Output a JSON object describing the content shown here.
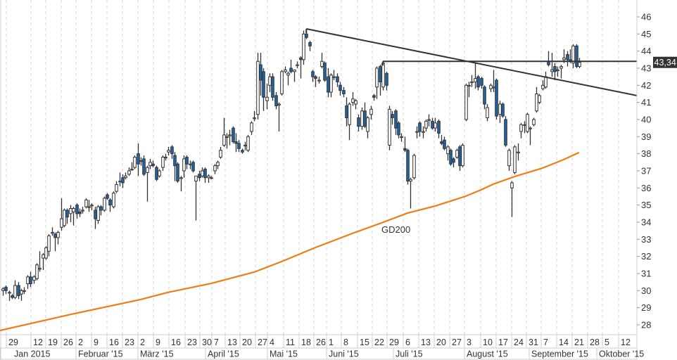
{
  "chart_data": {
    "type": "candlestick",
    "title": "",
    "xlabel": "",
    "ylabel": "",
    "ylim": [
      27.5,
      46.5
    ],
    "y_ticks": [
      28,
      29,
      30,
      31,
      32,
      33,
      34,
      35,
      36,
      37,
      38,
      39,
      40,
      41,
      42,
      43,
      44,
      45,
      46
    ],
    "y_axis_position": "right",
    "grid": "vertical dashed at week ticks",
    "week_ticks": [
      "29",
      "12",
      "19",
      "26",
      "2",
      "9",
      "16",
      "23",
      "2",
      "9",
      "16",
      "23",
      "30",
      "7",
      "13",
      "20",
      "27",
      "4",
      "11",
      "18",
      "26",
      "1",
      "8",
      "15",
      "22",
      "29",
      "6",
      "13",
      "20",
      "27",
      "3",
      "10",
      "17",
      "24",
      "31",
      "7",
      "14",
      "21",
      "28",
      "5",
      "12"
    ],
    "month_labels": [
      "Jan 2015",
      "Februar '15",
      "März '15",
      "April '15",
      "Mai '15",
      "Juni '15",
      "Juli '15",
      "August '15",
      "September '15",
      "Oktober '15"
    ],
    "last_price_label": "43,34",
    "last_price": 43.34,
    "colors": {
      "up_body": "#ffffff",
      "down_body": "#1f64a8",
      "outline": "#333333",
      "gd200": "#f07c12",
      "trendline": "#333333",
      "last_price_bg": "#333333"
    },
    "candles_ohlc": [
      [
        30.0,
        30.2,
        29.7,
        30.1
      ],
      [
        30.2,
        30.3,
        29.8,
        30.0
      ],
      [
        29.9,
        30.0,
        29.4,
        29.9
      ],
      [
        29.7,
        29.8,
        29.5,
        29.6
      ],
      [
        29.6,
        30.6,
        29.5,
        30.3
      ],
      [
        30.3,
        30.5,
        29.5,
        29.7
      ],
      [
        29.8,
        30.1,
        29.4,
        30.0
      ],
      [
        30.0,
        30.2,
        29.8,
        30.0
      ],
      [
        30.4,
        30.9,
        30.1,
        30.8
      ],
      [
        30.8,
        31.1,
        30.2,
        30.4
      ],
      [
        30.6,
        30.9,
        30.4,
        30.8
      ],
      [
        30.7,
        31.6,
        30.6,
        31.5
      ],
      [
        31.3,
        32.3,
        31.1,
        31.3
      ],
      [
        31.9,
        32.2,
        31.2,
        32.1
      ],
      [
        31.9,
        32.6,
        31.8,
        32.5
      ],
      [
        32.3,
        33.3,
        32.0,
        33.2
      ],
      [
        33.4,
        33.7,
        33.2,
        33.4
      ],
      [
        33.3,
        33.4,
        32.3,
        33.1
      ],
      [
        33.1,
        33.5,
        32.7,
        33.4
      ],
      [
        33.7,
        35.4,
        33.5,
        34.2
      ],
      [
        33.8,
        34.8,
        33.7,
        34.7
      ],
      [
        34.7,
        34.8,
        33.9,
        34.3
      ],
      [
        34.5,
        35.0,
        34.0,
        34.8
      ],
      [
        34.6,
        34.9,
        33.8,
        34.8
      ],
      [
        35.0,
        35.1,
        34.2,
        34.5
      ],
      [
        34.6,
        34.8,
        34.3,
        34.5
      ],
      [
        34.7,
        34.9,
        34.5,
        34.7
      ],
      [
        34.9,
        35.4,
        34.8,
        35.3
      ],
      [
        34.9,
        35.3,
        34.6,
        34.9
      ],
      [
        35.0,
        35.1,
        34.7,
        35.0
      ],
      [
        34.7,
        34.9,
        33.6,
        34.2
      ],
      [
        34.1,
        35.0,
        33.9,
        34.9
      ],
      [
        34.9,
        35.0,
        34.4,
        34.7
      ],
      [
        34.7,
        35.5,
        34.6,
        35.4
      ],
      [
        35.6,
        35.7,
        35.3,
        35.4
      ],
      [
        35.3,
        35.4,
        34.6,
        35.0
      ],
      [
        34.9,
        35.8,
        34.8,
        35.7
      ],
      [
        35.8,
        36.4,
        35.7,
        36.2
      ],
      [
        36.4,
        36.9,
        36.1,
        36.4
      ],
      [
        36.6,
        36.8,
        36.0,
        36.3
      ],
      [
        36.6,
        36.9,
        36.5,
        36.7
      ],
      [
        36.8,
        37.2,
        36.7,
        37.0
      ],
      [
        37.1,
        37.5,
        37.0,
        37.1
      ],
      [
        37.2,
        37.9,
        37.1,
        37.8
      ],
      [
        38.0,
        38.6,
        36.7,
        37.4
      ],
      [
        37.6,
        37.8,
        37.3,
        37.6
      ],
      [
        37.7,
        37.9,
        36.7,
        36.8
      ],
      [
        36.9,
        37.3,
        35.2,
        37.2
      ],
      [
        37.3,
        37.7,
        37.1,
        37.5
      ],
      [
        37.4,
        37.6,
        37.2,
        37.3
      ],
      [
        37.2,
        37.3,
        36.4,
        36.5
      ],
      [
        36.7,
        37.1,
        36.6,
        37.0
      ],
      [
        37.2,
        37.9,
        37.0,
        37.8
      ],
      [
        37.8,
        38.0,
        37.6,
        37.8
      ],
      [
        38.1,
        38.4,
        37.9,
        38.2
      ],
      [
        38.4,
        38.5,
        37.7,
        38.0
      ],
      [
        37.9,
        38.1,
        36.4,
        37.3
      ],
      [
        37.4,
        37.5,
        36.3,
        36.4
      ],
      [
        36.6,
        36.7,
        35.8,
        36.6
      ],
      [
        37.0,
        37.9,
        36.6,
        37.7
      ],
      [
        37.8,
        37.9,
        37.1,
        37.4
      ],
      [
        37.4,
        37.6,
        37.1,
        37.4
      ],
      [
        37.5,
        37.6,
        36.9,
        37.0
      ],
      [
        36.4,
        36.7,
        34.1,
        36.7
      ],
      [
        36.8,
        37.0,
        36.4,
        36.6
      ],
      [
        36.7,
        37.2,
        36.6,
        37.0
      ],
      [
        37.1,
        37.2,
        36.3,
        36.6
      ],
      [
        36.6,
        36.8,
        36.3,
        36.7
      ],
      [
        36.6,
        36.7,
        36.5,
        36.6
      ],
      [
        37.0,
        37.4,
        36.8,
        37.3
      ],
      [
        37.3,
        37.6,
        37.1,
        37.5
      ],
      [
        37.8,
        38.4,
        37.7,
        38.2
      ],
      [
        38.5,
        40.1,
        38.4,
        39.1
      ],
      [
        39.0,
        39.2,
        38.3,
        39.0
      ],
      [
        39.1,
        39.4,
        38.5,
        39.1
      ],
      [
        39.5,
        39.6,
        38.6,
        38.7
      ],
      [
        38.7,
        39.2,
        38.1,
        38.6
      ],
      [
        38.6,
        38.8,
        38.1,
        38.3
      ],
      [
        38.2,
        38.3,
        38.0,
        38.1
      ],
      [
        38.5,
        38.7,
        38.2,
        38.5
      ],
      [
        38.2,
        39.1,
        38.1,
        39.0
      ],
      [
        39.3,
        39.9,
        39.1,
        39.8
      ],
      [
        40.1,
        40.5,
        39.9,
        40.1
      ],
      [
        40.3,
        43.9,
        40.0,
        43.4
      ],
      [
        43.2,
        43.9,
        41.4,
        42.3
      ],
      [
        42.8,
        43.0,
        40.5,
        41.3
      ],
      [
        41.1,
        42.1,
        40.6,
        41.3
      ],
      [
        42.0,
        42.7,
        41.6,
        42.5
      ],
      [
        42.5,
        42.7,
        41.1,
        41.3
      ],
      [
        41.4,
        41.6,
        40.6,
        40.8
      ],
      [
        40.9,
        41.0,
        39.3,
        40.9
      ],
      [
        41.5,
        42.9,
        41.4,
        42.8
      ],
      [
        42.8,
        43.1,
        42.7,
        42.9
      ],
      [
        42.6,
        42.8,
        42.0,
        42.7
      ],
      [
        43.0,
        43.5,
        42.7,
        42.8
      ],
      [
        42.8,
        42.9,
        42.2,
        42.9
      ],
      [
        43.2,
        43.4,
        43.0,
        43.2
      ],
      [
        43.6,
        43.7,
        42.4,
        43.5
      ],
      [
        43.5,
        45.2,
        43.2,
        45.0
      ],
      [
        45.0,
        45.2,
        44.7,
        44.8
      ],
      [
        44.5,
        44.6,
        44.0,
        44.3
      ],
      [
        42.8,
        42.9,
        42.2,
        42.5
      ],
      [
        42.5,
        42.6,
        41.9,
        42.4
      ],
      [
        42.3,
        42.5,
        42.1,
        42.3
      ],
      [
        43.1,
        43.9,
        43.0,
        43.4
      ],
      [
        43.3,
        43.4,
        42.2,
        42.3
      ],
      [
        42.5,
        43.0,
        41.3,
        41.6
      ],
      [
        41.6,
        42.7,
        41.3,
        42.6
      ],
      [
        42.5,
        42.9,
        42.3,
        42.5
      ],
      [
        42.5,
        42.7,
        41.9,
        42.2
      ],
      [
        42.0,
        42.2,
        41.4,
        41.7
      ],
      [
        41.7,
        41.9,
        41.3,
        41.5
      ],
      [
        40.8,
        41.3,
        39.6,
        40.1
      ],
      [
        39.7,
        41.0,
        38.8,
        40.9
      ],
      [
        41.0,
        41.6,
        40.8,
        41.2
      ],
      [
        40.9,
        41.2,
        40.6,
        41.1
      ],
      [
        40.1,
        40.3,
        39.3,
        39.6
      ],
      [
        39.6,
        40.7,
        39.4,
        40.5
      ],
      [
        40.5,
        41.0,
        39.5,
        39.6
      ],
      [
        39.3,
        40.2,
        38.9,
        40.1
      ],
      [
        40.3,
        40.8,
        40.0,
        40.6
      ],
      [
        41.4,
        41.5,
        41.1,
        41.3
      ],
      [
        41.9,
        43.1,
        41.2,
        43.0
      ],
      [
        43.1,
        43.2,
        41.4,
        42.2
      ],
      [
        41.9,
        43.4,
        41.7,
        43.3
      ],
      [
        42.7,
        42.8,
        41.7,
        42.0
      ],
      [
        38.5,
        40.8,
        38.2,
        40.6
      ],
      [
        40.3,
        40.5,
        39.7,
        40.1
      ],
      [
        40.5,
        40.6,
        39.1,
        39.5
      ],
      [
        39.8,
        39.9,
        38.9,
        39.1
      ],
      [
        39.0,
        39.2,
        38.7,
        39.0
      ],
      [
        38.3,
        39.0,
        38.1,
        38.2
      ],
      [
        38.2,
        38.3,
        36.2,
        36.4
      ],
      [
        36.4,
        36.6,
        34.8,
        36.5
      ],
      [
        36.6,
        38.0,
        36.5,
        37.9
      ],
      [
        39.3,
        39.6,
        38.9,
        39.3
      ],
      [
        39.8,
        39.9,
        39.0,
        39.3
      ],
      [
        39.3,
        39.6,
        38.9,
        39.3
      ],
      [
        39.5,
        40.0,
        39.3,
        39.9
      ],
      [
        40.0,
        40.3,
        39.6,
        40.0
      ],
      [
        39.9,
        40.1,
        39.4,
        39.5
      ],
      [
        39.5,
        40.1,
        39.3,
        39.8
      ],
      [
        39.9,
        40.0,
        38.9,
        39.2
      ],
      [
        38.7,
        39.1,
        38.5,
        38.6
      ],
      [
        38.8,
        39.0,
        38.2,
        38.3
      ],
      [
        38.0,
        38.5,
        37.6,
        38.4
      ],
      [
        38.2,
        38.3,
        37.3,
        37.4
      ],
      [
        37.7,
        37.8,
        37.2,
        37.5
      ],
      [
        37.8,
        38.3,
        37.7,
        38.2
      ],
      [
        38.4,
        38.5,
        37.0,
        37.3
      ],
      [
        37.3,
        38.6,
        37.2,
        38.5
      ],
      [
        40.0,
        42.1,
        39.9,
        42.0
      ],
      [
        42.0,
        42.2,
        41.3,
        42.0
      ],
      [
        42.2,
        42.6,
        41.9,
        42.2
      ],
      [
        42.2,
        43.3,
        41.8,
        42.4
      ],
      [
        42.5,
        42.6,
        41.7,
        41.9
      ],
      [
        42.4,
        42.5,
        41.8,
        42.0
      ],
      [
        41.9,
        42.0,
        40.6,
        40.9
      ],
      [
        40.1,
        40.9,
        39.9,
        40.7
      ],
      [
        41.8,
        42.1,
        41.6,
        42.0
      ],
      [
        41.9,
        42.9,
        41.6,
        41.9
      ],
      [
        42.3,
        42.4,
        40.0,
        40.2
      ],
      [
        40.3,
        41.1,
        39.8,
        40.9
      ],
      [
        40.9,
        41.0,
        40.1,
        40.2
      ],
      [
        40.0,
        40.2,
        38.4,
        38.5
      ],
      [
        37.3,
        38.3,
        37.0,
        38.2
      ],
      [
        36.0,
        36.4,
        34.3,
        36.3
      ],
      [
        36.9,
        38.5,
        36.8,
        38.4
      ],
      [
        38.1,
        38.6,
        37.6,
        38.1
      ],
      [
        39.3,
        39.8,
        38.9,
        39.7
      ],
      [
        39.7,
        39.9,
        39.2,
        39.7
      ],
      [
        39.3,
        40.4,
        39.2,
        40.3
      ],
      [
        39.5,
        39.6,
        38.5,
        39.5
      ],
      [
        39.7,
        40.1,
        39.6,
        40.0
      ],
      [
        40.5,
        41.9,
        40.4,
        41.5
      ],
      [
        41.0,
        41.5,
        40.9,
        41.4
      ],
      [
        41.8,
        42.3,
        41.7,
        42.0
      ],
      [
        41.9,
        42.8,
        41.8,
        42.5
      ],
      [
        43.4,
        44.0,
        43.1,
        43.2
      ],
      [
        42.8,
        43.9,
        42.5,
        42.9
      ],
      [
        43.1,
        43.3,
        42.3,
        42.8
      ],
      [
        42.9,
        43.1,
        42.5,
        42.9
      ],
      [
        43.0,
        43.2,
        42.4,
        43.1
      ],
      [
        43.5,
        44.1,
        43.3,
        43.6
      ],
      [
        43.8,
        44.0,
        43.1,
        43.5
      ],
      [
        43.5,
        44.1,
        43.3,
        43.5
      ],
      [
        43.3,
        44.4,
        43.0,
        44.3
      ],
      [
        44.3,
        44.4,
        43.0,
        43.1
      ],
      [
        43.1,
        43.6,
        43.0,
        43.34
      ]
    ],
    "gd200": {
      "name": "GD200",
      "points_candle_value": [
        [
          0,
          27.67
        ],
        [
          23,
          28.6
        ],
        [
          46,
          29.48
        ],
        [
          55,
          29.9
        ],
        [
          69,
          30.42
        ],
        [
          83,
          31.08
        ],
        [
          92,
          31.7
        ],
        [
          103,
          32.52
        ],
        [
          115,
          33.34
        ],
        [
          124,
          33.92
        ],
        [
          133,
          34.53
        ],
        [
          142,
          34.94
        ],
        [
          152,
          35.52
        ],
        [
          157,
          35.89
        ],
        [
          161,
          36.22
        ],
        [
          168,
          36.67
        ],
        [
          177,
          37.16
        ],
        [
          184,
          37.66
        ],
        [
          189,
          38.07
        ]
      ]
    },
    "trendlines": [
      {
        "name": "falling-resistance",
        "from_candle": 100,
        "from_price": 45.3,
        "to_candle": 208,
        "to_price": 41.4
      },
      {
        "name": "horizontal-resistance",
        "from_candle": 125,
        "from_price": 43.4,
        "to_candle": 208,
        "to_price": 43.4
      }
    ]
  }
}
